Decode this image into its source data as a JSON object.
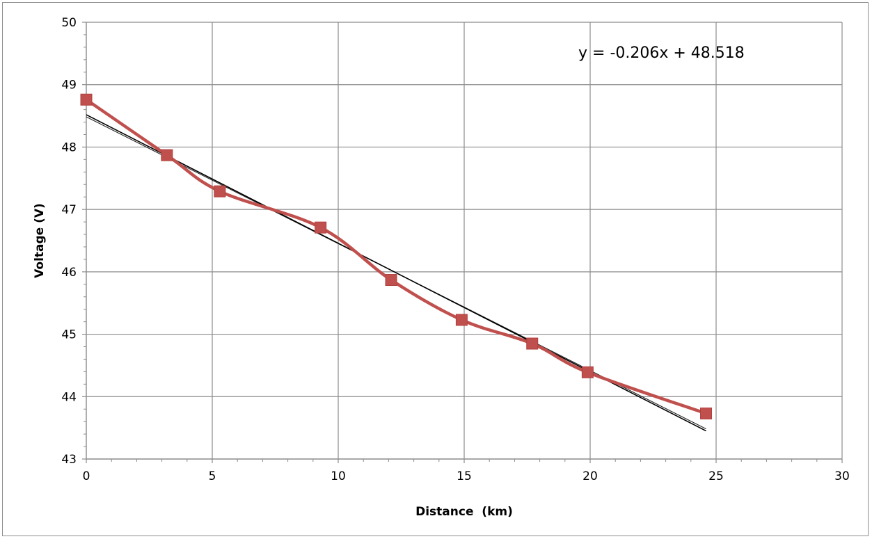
{
  "chart_data": {
    "type": "line",
    "xlabel": "Distance  (km)",
    "ylabel": "Voltage (V)",
    "xlim": [
      0,
      30
    ],
    "ylim": [
      43,
      50
    ],
    "x_ticks": [
      0,
      5,
      10,
      15,
      20,
      25,
      30
    ],
    "y_ticks": [
      43,
      44,
      45,
      46,
      47,
      48,
      49,
      50
    ],
    "grid": true,
    "series": [
      {
        "marker": "square",
        "smooth": true,
        "color": "#c0504d",
        "x": [
          0,
          3.2,
          5.3,
          9.3,
          12.1,
          14.9,
          17.7,
          19.9,
          24.6
        ],
        "y": [
          48.76,
          47.87,
          47.29,
          46.71,
          45.87,
          45.23,
          44.85,
          44.39,
          43.73
        ]
      }
    ],
    "trendline": {
      "type": "linear",
      "slope": -0.206,
      "intercept": 48.518,
      "color": "#000000",
      "equation_label": "y = -0.206x + 48.518"
    }
  }
}
